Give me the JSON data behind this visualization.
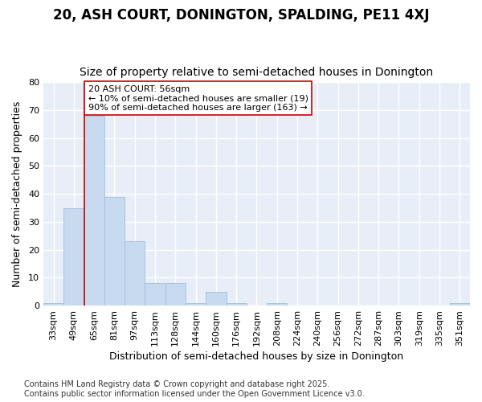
{
  "title": "20, ASH COURT, DONINGTON, SPALDING, PE11 4XJ",
  "subtitle": "Size of property relative to semi-detached houses in Donington",
  "xlabel": "Distribution of semi-detached houses by size in Donington",
  "ylabel": "Number of semi-detached properties",
  "categories": [
    "33sqm",
    "49sqm",
    "65sqm",
    "81sqm",
    "97sqm",
    "113sqm",
    "128sqm",
    "144sqm",
    "160sqm",
    "176sqm",
    "192sqm",
    "208sqm",
    "224sqm",
    "240sqm",
    "256sqm",
    "272sqm",
    "287sqm",
    "303sqm",
    "319sqm",
    "335sqm",
    "351sqm"
  ],
  "values": [
    1,
    35,
    68,
    39,
    23,
    8,
    8,
    1,
    5,
    1,
    0,
    1,
    0,
    0,
    0,
    0,
    0,
    0,
    0,
    0,
    1
  ],
  "bar_color": "#c8daf0",
  "bar_edge_color": "#a0bedd",
  "ylim": [
    0,
    80
  ],
  "yticks": [
    0,
    10,
    20,
    30,
    40,
    50,
    60,
    70,
    80
  ],
  "annotation_title": "20 ASH COURT: 56sqm",
  "annotation_line1": "← 10% of semi-detached houses are smaller (19)",
  "annotation_line2": "90% of semi-detached houses are larger (163) →",
  "vline_x_index": 1.5,
  "footer_line1": "Contains HM Land Registry data © Crown copyright and database right 2025.",
  "footer_line2": "Contains public sector information licensed under the Open Government Licence v3.0.",
  "fig_bg_color": "#ffffff",
  "plot_bg_color": "#e8eef8",
  "grid_color": "#ffffff",
  "vline_color": "#cc0000",
  "annotation_box_color": "#ffffff",
  "annotation_box_edge": "#cc0000",
  "title_fontsize": 12,
  "subtitle_fontsize": 10,
  "axis_label_fontsize": 9,
  "tick_fontsize": 8,
  "annotation_fontsize": 8,
  "footer_fontsize": 7
}
